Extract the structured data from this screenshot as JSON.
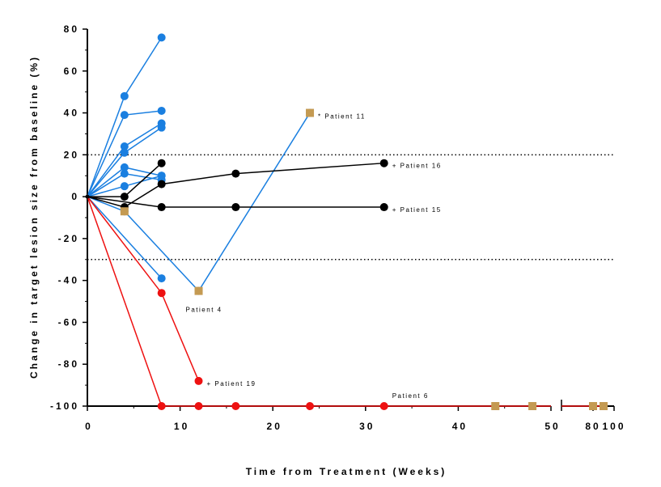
{
  "chart_data": {
    "type": "line",
    "xlabel": "Time from Treatment (Weeks)",
    "ylabel": "Change in target lesion size from baseline (%)",
    "ylim": [
      -100,
      80
    ],
    "yticks": [
      "80",
      "60",
      "40",
      "20",
      "0",
      "-20",
      "-40",
      "-60",
      "-80",
      "-100"
    ],
    "xlim_main": [
      0,
      50
    ],
    "xticks_main": [
      "0",
      "10",
      "20",
      "30",
      "40",
      "50"
    ],
    "xlim_broken": [
      50,
      100
    ],
    "xticks_broken": [
      "80",
      "100"
    ],
    "reference_lines": [
      20,
      -30
    ],
    "grid": false,
    "colors": {
      "blue": "#1a7fe0",
      "black": "#000000",
      "red": "#ee1111",
      "tan": "#c49a52"
    },
    "series": [
      {
        "color": "blue",
        "marker": "circle",
        "points": [
          [
            0,
            0
          ],
          [
            4,
            48
          ],
          [
            8,
            76
          ]
        ]
      },
      {
        "color": "blue",
        "marker": "circle",
        "points": [
          [
            0,
            0
          ],
          [
            4,
            39
          ],
          [
            8,
            41
          ]
        ]
      },
      {
        "color": "blue",
        "marker": "circle",
        "points": [
          [
            0,
            0
          ],
          [
            4,
            24
          ],
          [
            8,
            35
          ]
        ]
      },
      {
        "color": "blue",
        "marker": "circle",
        "points": [
          [
            0,
            0
          ],
          [
            4,
            21
          ],
          [
            8,
            33
          ]
        ]
      },
      {
        "color": "blue",
        "marker": "circle",
        "points": [
          [
            0,
            0
          ],
          [
            4,
            14
          ],
          [
            8,
            10
          ]
        ]
      },
      {
        "color": "blue",
        "marker": "circle",
        "points": [
          [
            0,
            0
          ],
          [
            4,
            11
          ],
          [
            8,
            8
          ]
        ]
      },
      {
        "color": "blue",
        "marker": "circle",
        "points": [
          [
            0,
            0
          ],
          [
            4,
            5
          ],
          [
            8,
            10
          ]
        ]
      },
      {
        "color": "blue",
        "marker": "circle",
        "points": [
          [
            0,
            0
          ],
          [
            8,
            -39
          ]
        ]
      },
      {
        "color": "blue",
        "marker": "square",
        "points": [
          [
            0,
            0
          ],
          [
            4,
            -7
          ],
          [
            12,
            -45
          ],
          [
            24,
            40
          ]
        ]
      },
      {
        "color": "black",
        "marker": "circle",
        "points": [
          [
            0,
            0
          ],
          [
            4,
            0
          ],
          [
            8,
            16
          ]
        ]
      },
      {
        "color": "black",
        "marker": "circle",
        "points": [
          [
            0,
            0
          ],
          [
            4,
            -5
          ],
          [
            8,
            6
          ],
          [
            16,
            11
          ],
          [
            32,
            16
          ]
        ]
      },
      {
        "color": "black",
        "marker": "circle",
        "points": [
          [
            0,
            0
          ],
          [
            8,
            -5
          ],
          [
            16,
            -5
          ],
          [
            32,
            -5
          ]
        ]
      },
      {
        "color": "red",
        "marker": "circle",
        "points": [
          [
            0,
            0
          ],
          [
            8,
            -46
          ],
          [
            12,
            -88
          ]
        ]
      },
      {
        "color": "red",
        "marker": "circle",
        "points": [
          [
            0,
            0
          ],
          [
            8,
            -100
          ],
          [
            12,
            -100
          ],
          [
            16,
            -100
          ],
          [
            24,
            -100
          ],
          [
            32,
            -100
          ]
        ]
      }
    ],
    "extra_markers": [
      {
        "color": "tan",
        "marker": "square",
        "x": 4,
        "y": -7
      },
      {
        "color": "tan",
        "marker": "square",
        "x": 12,
        "y": -45
      },
      {
        "color": "tan",
        "marker": "square",
        "x": 24,
        "y": 40
      }
    ],
    "tan_line": {
      "color": "red",
      "start": [
        32,
        -100
      ],
      "end_main": [
        50,
        -100
      ]
    },
    "tan_squares_main": [
      [
        44,
        -100
      ],
      [
        48,
        -100
      ]
    ],
    "tan_squares_broken": [
      [
        80,
        -100
      ],
      [
        90,
        -100
      ]
    ],
    "annotations": [
      {
        "text": "* Patient 11",
        "x": 24,
        "y": 40
      },
      {
        "text": "+ Patient 16",
        "x": 32,
        "y": 16
      },
      {
        "text": "+ Patient 15",
        "x": 32,
        "y": -5
      },
      {
        "text": "Patient 4",
        "x": 12,
        "y": -45
      },
      {
        "text": "+ Patient 19",
        "x": 12,
        "y": -88
      },
      {
        "text": "Patient 6",
        "x": 32,
        "y": -100
      }
    ]
  }
}
